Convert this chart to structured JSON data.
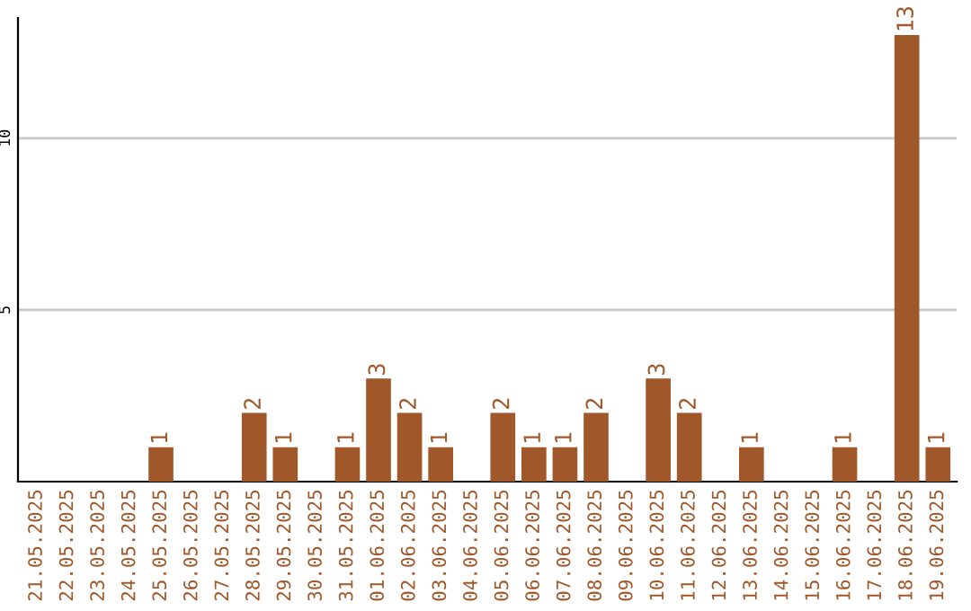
{
  "chart_data": {
    "type": "bar",
    "categories": [
      "21.05.2025",
      "22.05.2025",
      "23.05.2025",
      "24.05.2025",
      "25.05.2025",
      "26.05.2025",
      "27.05.2025",
      "28.05.2025",
      "29.05.2025",
      "30.05.2025",
      "31.05.2025",
      "01.06.2025",
      "02.06.2025",
      "03.06.2025",
      "04.06.2025",
      "05.06.2025",
      "06.06.2025",
      "07.06.2025",
      "08.06.2025",
      "09.06.2025",
      "10.06.2025",
      "11.06.2025",
      "12.06.2025",
      "13.06.2025",
      "14.06.2025",
      "15.06.2025",
      "16.06.2025",
      "17.06.2025",
      "18.06.2025",
      "19.06.2025"
    ],
    "values": [
      0,
      0,
      0,
      0,
      1,
      0,
      0,
      2,
      1,
      0,
      1,
      3,
      2,
      1,
      0,
      2,
      1,
      1,
      2,
      0,
      3,
      2,
      0,
      1,
      0,
      0,
      1,
      0,
      13,
      1
    ],
    "value_labels": [
      null,
      null,
      null,
      null,
      "1",
      null,
      null,
      "2",
      "1",
      null,
      "1",
      "3",
      "2",
      "1",
      null,
      "2",
      "1",
      "1",
      "2",
      null,
      "3",
      "2",
      null,
      "1",
      null,
      null,
      "1",
      null,
      "13",
      "1"
    ],
    "color": "#a0582a",
    "ylim": [
      0,
      13.5
    ],
    "yticks": [
      5,
      10
    ],
    "grid": "y"
  }
}
